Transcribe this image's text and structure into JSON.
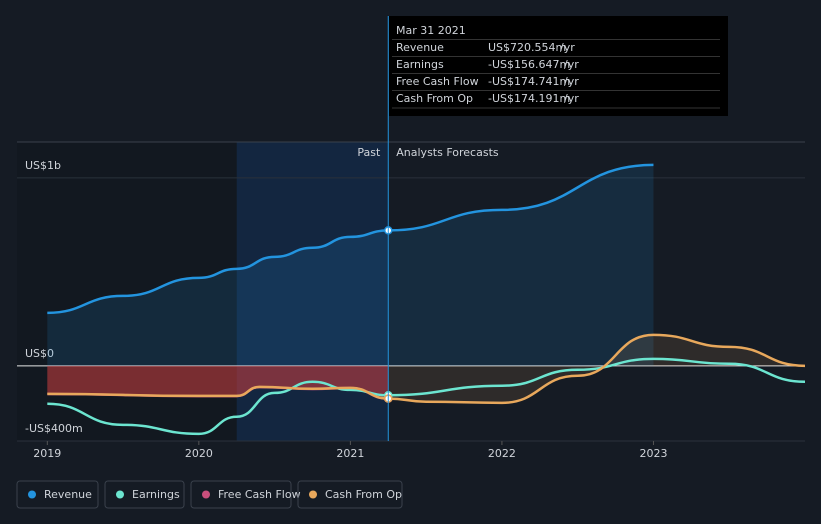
{
  "chart_data": {
    "type": "line",
    "ylim": [
      -400,
      1191
    ],
    "yticks": [
      {
        "value": 1000,
        "label": "US$1b"
      },
      {
        "value": 0,
        "label": "US$0"
      },
      {
        "value": -400,
        "label": "-US$400m"
      }
    ],
    "xlim": [
      2018.8,
      2024.0
    ],
    "xticks": [
      2019,
      2020,
      2021,
      2022,
      2023
    ],
    "past_label": "Past",
    "forecast_label": "Analysts Forecasts",
    "series": [
      {
        "name": "Revenue",
        "color": "#2394df",
        "x": [
          2019,
          2019.5,
          2020,
          2020.25,
          2020.5,
          2020.75,
          2021,
          2021.25,
          2022,
          2023
        ],
        "values": [
          282,
          372,
          468,
          516,
          580,
          628,
          686,
          720.554,
          830,
          1069
        ]
      },
      {
        "name": "Earnings",
        "color": "#6ce5d0",
        "x": [
          2019,
          2019.5,
          2020,
          2020.25,
          2020.5,
          2020.75,
          2021,
          2021.25,
          2022,
          2022.5,
          2023,
          2023.5,
          2024
        ],
        "values": [
          -202,
          -314,
          -362,
          -271,
          -144,
          -85,
          -128,
          -156.647,
          -106,
          -21,
          37,
          11,
          -85
        ]
      },
      {
        "name": "Free Cash Flow",
        "color": "#c94f7c",
        "x": [
          2019,
          2020,
          2020.25,
          2020.4,
          2020.75,
          2021,
          2021.25
        ],
        "values": [
          -150,
          -161,
          -161,
          -113,
          -123,
          -118,
          -174.741
        ]
      },
      {
        "name": "Cash From Op",
        "color": "#e8a85c",
        "x": [
          2019,
          2020,
          2020.25,
          2020.4,
          2020.75,
          2021,
          2021.25,
          2021.5,
          2022,
          2022.5,
          2023,
          2023.5,
          2024
        ],
        "values": [
          -149,
          -160,
          -160,
          -112,
          -122,
          -117,
          -174.191,
          -191,
          -197,
          -53,
          165,
          101,
          0
        ]
      }
    ],
    "tooltip": {
      "date": "Mar 31 2021",
      "rows": [
        {
          "label": "Revenue",
          "value": "US$720.554m",
          "unit": "/yr"
        },
        {
          "label": "Earnings",
          "value": "-US$156.647m",
          "unit": "/yr"
        },
        {
          "label": "Free Cash Flow",
          "value": "-US$174.741m",
          "unit": "/yr"
        },
        {
          "label": "Cash From Op",
          "value": "-US$174.191m",
          "unit": "/yr"
        }
      ]
    }
  }
}
